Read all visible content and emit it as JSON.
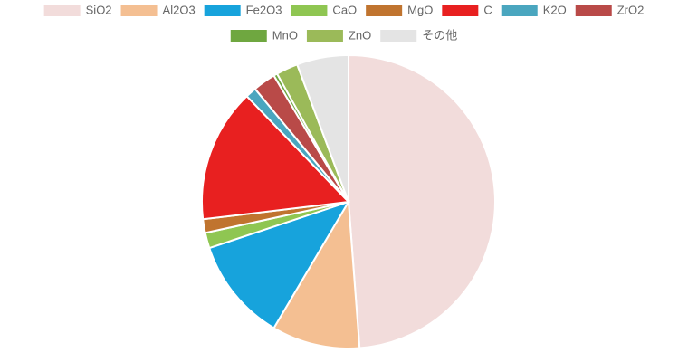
{
  "chart_data": {
    "type": "pie",
    "categories": [
      "SiO2",
      "Al2O3",
      "Fe2O3",
      "CaO",
      "MgO",
      "C",
      "K2O",
      "ZrO2",
      "MnO",
      "ZnO",
      "その他"
    ],
    "values": [
      48.8,
      9.7,
      11.4,
      1.7,
      1.5,
      14.7,
      1.2,
      2.5,
      0.4,
      2.4,
      5.7
    ],
    "colors": [
      "#f2dcdb",
      "#f4bf92",
      "#17a3dc",
      "#8fc652",
      "#c0742f",
      "#e82020",
      "#4aa6bf",
      "#b94a48",
      "#6fa740",
      "#9bba59",
      "#e4e4e4"
    ],
    "legend": "top"
  }
}
